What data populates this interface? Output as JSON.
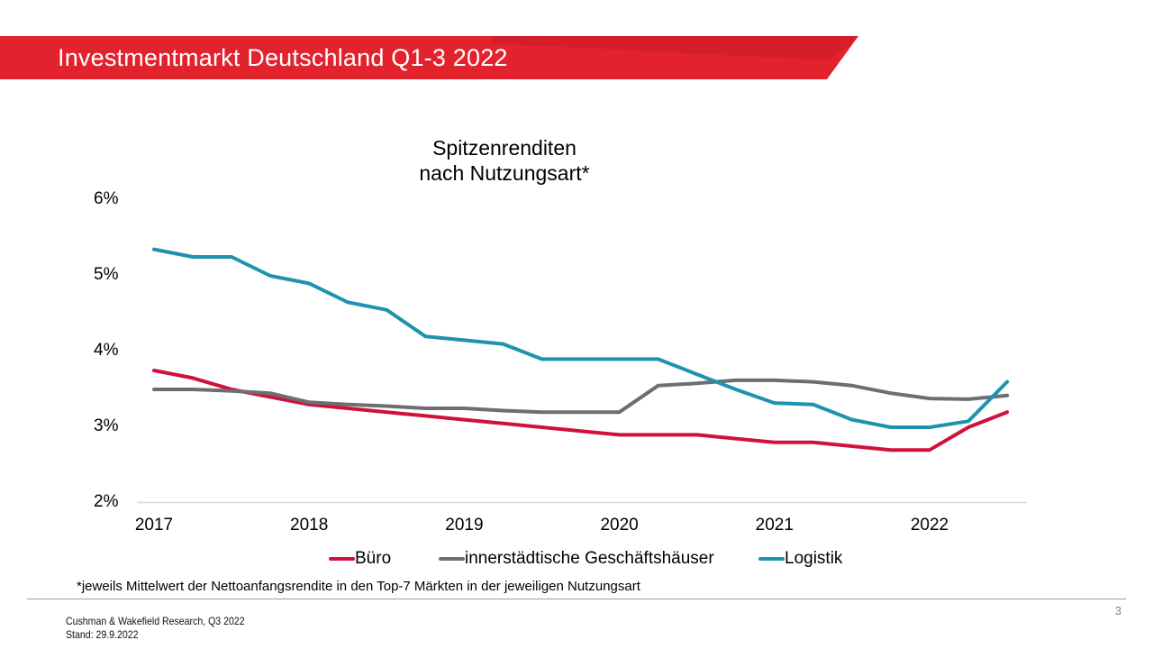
{
  "slide": {
    "banner": {
      "title": "Investmentmarkt Deutschland Q1-3 2022",
      "red": "#e2232e",
      "red_dark": "#d41e29"
    },
    "footnote": "*jeweils Mittelwert der Nettoanfangsrendite in den Top-7 Märkten in der jeweiligen Nutzungsart",
    "footer": {
      "line1": "Cushman & Wakefield Research, Q3 2022",
      "line2": "Stand: 29.9.2022",
      "page_number": "3"
    }
  },
  "chart_data": {
    "type": "line",
    "title": "Spitzenrenditen nach Nutzungsart*",
    "title_lines": [
      "Spitzenrenditen",
      "nach Nutzungsart*"
    ],
    "frequency": "quarterly",
    "x_quarters": [
      "2017-Q1",
      "2017-Q2",
      "2017-Q3",
      "2017-Q4",
      "2018-Q1",
      "2018-Q2",
      "2018-Q3",
      "2018-Q4",
      "2019-Q1",
      "2019-Q2",
      "2019-Q3",
      "2019-Q4",
      "2020-Q1",
      "2020-Q2",
      "2020-Q3",
      "2020-Q4",
      "2021-Q1",
      "2021-Q2",
      "2021-Q3",
      "2021-Q4",
      "2022-Q1",
      "2022-Q2",
      "2022-Q3"
    ],
    "x_tick_labels": [
      "2017",
      "2018",
      "2019",
      "2020",
      "2021",
      "2022"
    ],
    "y_tick_labels": [
      "6%",
      "5%",
      "4%",
      "3%",
      "2%"
    ],
    "y_tick_values": [
      6,
      5,
      4,
      3,
      2
    ],
    "ylim": [
      2,
      6
    ],
    "unit": "percent",
    "grid": "off",
    "legend_position": "bottom",
    "axis_line_color": "#d9d9d9",
    "series": [
      {
        "name": "Büro",
        "color": "#d0113c",
        "values": [
          3.75,
          3.65,
          3.5,
          3.4,
          3.3,
          3.25,
          3.2,
          3.15,
          3.1,
          3.05,
          3.0,
          2.95,
          2.9,
          2.9,
          2.9,
          2.85,
          2.8,
          2.8,
          2.75,
          2.7,
          2.7,
          3.0,
          3.2
        ]
      },
      {
        "name": "innerstädtische Geschäftshäuser",
        "color": "#6d6e71",
        "values": [
          3.5,
          3.5,
          3.48,
          3.45,
          3.33,
          3.3,
          3.28,
          3.25,
          3.25,
          3.22,
          3.2,
          3.2,
          3.2,
          3.55,
          3.58,
          3.62,
          3.62,
          3.6,
          3.55,
          3.45,
          3.38,
          3.37,
          3.42
        ]
      },
      {
        "name": "Logistik",
        "color": "#1e93ad",
        "values": [
          5.35,
          5.25,
          5.25,
          5.0,
          4.9,
          4.65,
          4.55,
          4.2,
          4.15,
          4.1,
          3.9,
          3.9,
          3.9,
          3.9,
          3.7,
          3.5,
          3.32,
          3.3,
          3.1,
          3.0,
          3.0,
          3.08,
          3.6
        ]
      }
    ]
  }
}
